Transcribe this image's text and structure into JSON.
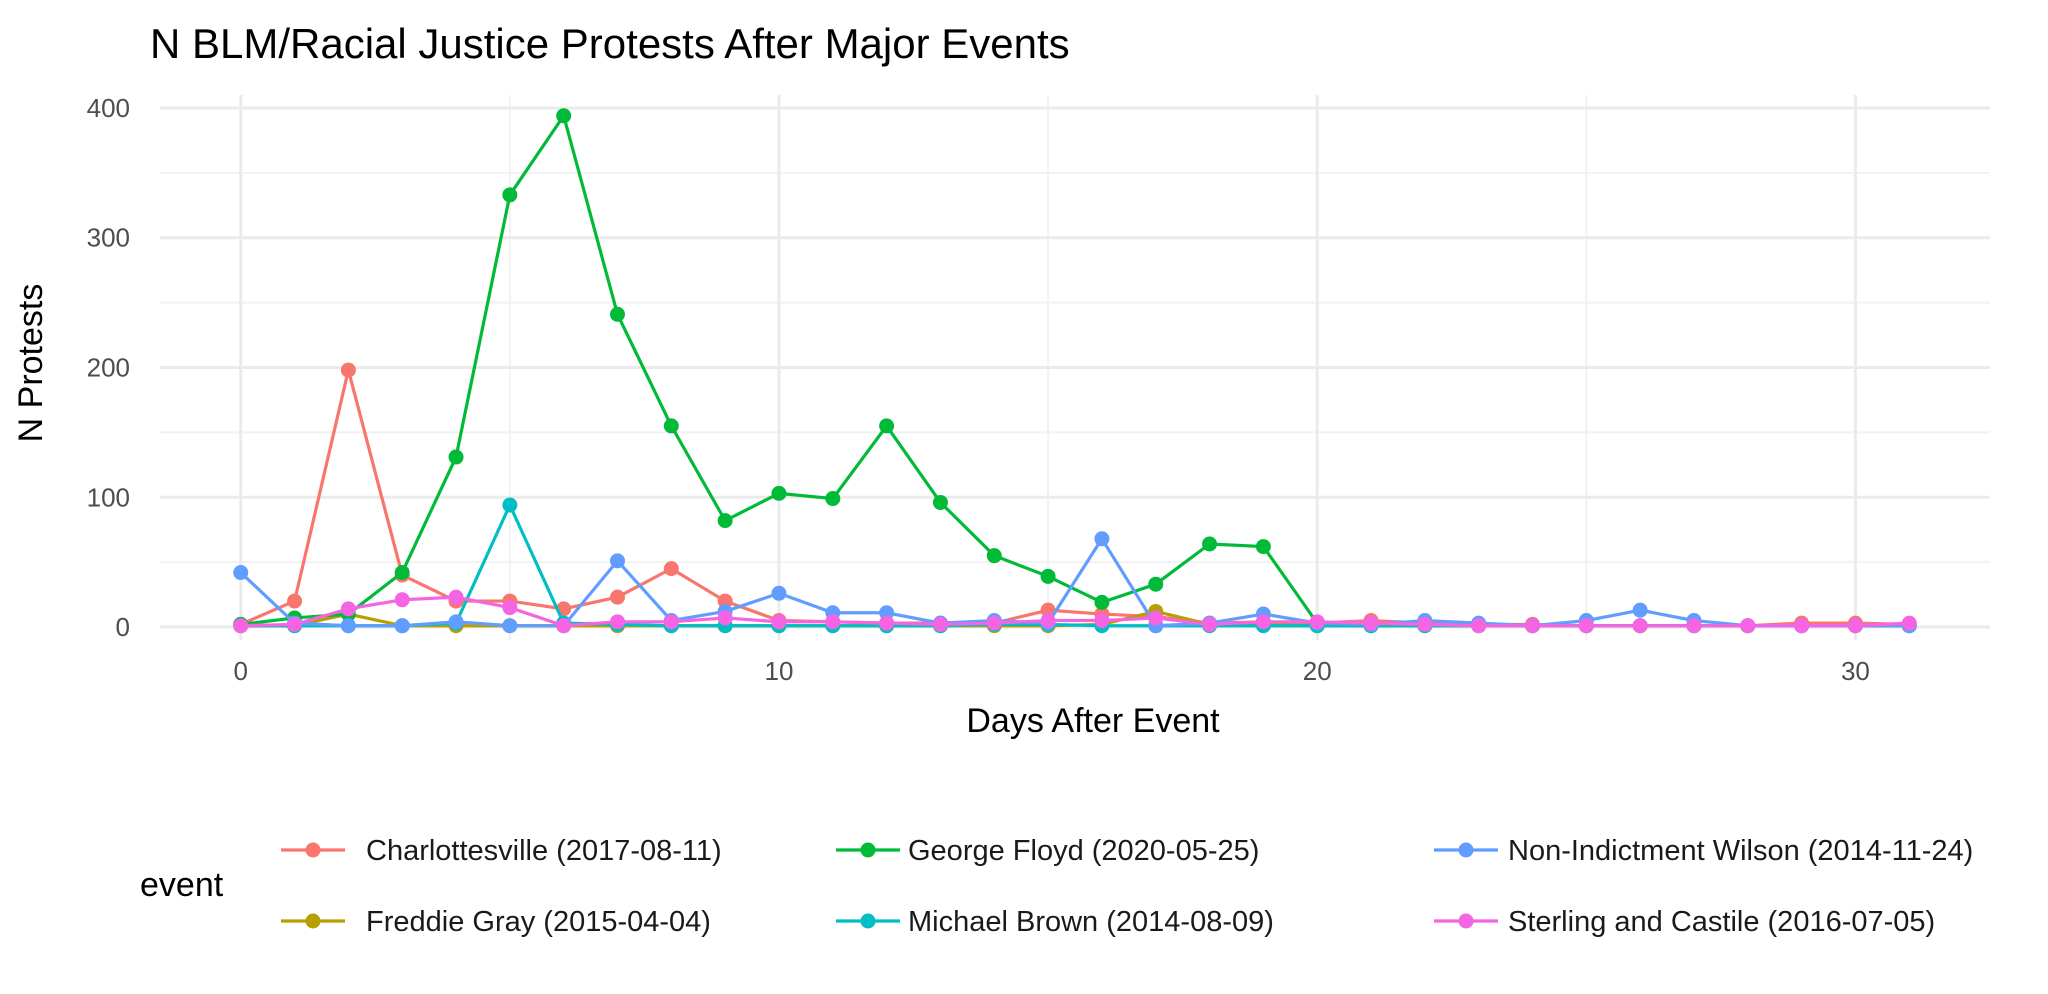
{
  "chart_data": {
    "type": "line",
    "title": "N BLM/Racial Justice Protests After Major Events",
    "xlabel": "Days After Event",
    "ylabel": "N Protests",
    "xlim": [
      -1.5,
      32.5
    ],
    "ylim": [
      -10,
      410
    ],
    "x_ticks": [
      "0",
      "10",
      "20",
      "30"
    ],
    "y_ticks": [
      "0",
      "100",
      "200",
      "300",
      "400"
    ],
    "grid": true,
    "legend_title": "event",
    "legend_position": "bottom",
    "series": [
      {
        "name": "Charlottesville (2017-08-11)",
        "color": "#F8766D",
        "x": [
          0,
          1,
          2,
          3,
          4,
          5,
          6,
          7,
          8,
          9,
          10,
          11,
          12,
          13,
          14,
          15,
          16,
          17,
          18,
          19,
          20,
          21,
          22,
          23,
          24,
          25,
          26,
          27,
          28,
          29,
          30,
          31
        ],
        "values": [
          2,
          20,
          198,
          40,
          20,
          20,
          14,
          23,
          45,
          20,
          5,
          4,
          3,
          3,
          3,
          13,
          10,
          8,
          3,
          4,
          3,
          5,
          3,
          2,
          2,
          1,
          1,
          1,
          1,
          3,
          3,
          2
        ]
      },
      {
        "name": "Freddie Gray (2015-04-04)",
        "color": "#B79F00",
        "x": [
          0,
          1,
          2,
          3,
          4,
          5,
          6,
          7,
          8,
          9,
          10,
          11,
          12,
          13,
          14,
          15,
          16,
          17,
          18,
          19,
          20,
          21,
          22,
          23,
          24,
          25,
          26,
          27,
          28,
          29,
          30,
          31
        ],
        "values": [
          1,
          1,
          10,
          1,
          1,
          1,
          1,
          1,
          1,
          1,
          1,
          1,
          1,
          1,
          1,
          1,
          2,
          12,
          2,
          2,
          1,
          1,
          1,
          1,
          1,
          1,
          1,
          1,
          1,
          1,
          1,
          1
        ]
      },
      {
        "name": "George Floyd (2020-05-25)",
        "color": "#00BA38",
        "x": [
          0,
          1,
          2,
          3,
          4,
          5,
          6,
          7,
          8,
          9,
          10,
          11,
          12,
          13,
          14,
          15,
          16,
          17,
          18,
          19,
          20
        ],
        "values": [
          2,
          7,
          10,
          42,
          131,
          333,
          394,
          241,
          155,
          82,
          103,
          99,
          155,
          96,
          55,
          39,
          19,
          33,
          64,
          62,
          3
        ]
      },
      {
        "name": "Michael Brown (2014-08-09)",
        "color": "#00BFC4",
        "x": [
          0,
          1,
          2,
          3,
          4,
          5,
          6,
          7,
          8,
          9,
          10,
          11,
          12,
          13,
          14,
          15,
          16,
          17,
          18,
          19,
          20,
          21,
          22,
          23,
          24,
          25,
          26,
          27,
          28,
          29,
          30,
          31
        ],
        "values": [
          1,
          1,
          1,
          1,
          3,
          94,
          3,
          2,
          1,
          1,
          1,
          1,
          1,
          1,
          2,
          2,
          1,
          1,
          1,
          1,
          1,
          1,
          1,
          1,
          1,
          1,
          1,
          1,
          1,
          1,
          1,
          1
        ]
      },
      {
        "name": "Non-Indictment Wilson (2014-11-24)",
        "color": "#619CFF",
        "x": [
          0,
          1,
          2,
          3,
          4,
          5,
          6,
          7,
          8,
          9,
          10,
          11,
          12,
          13,
          14,
          15,
          16,
          17,
          18,
          19,
          20,
          21,
          22,
          23,
          24,
          25,
          26,
          27,
          28,
          29,
          30,
          31
        ],
        "values": [
          42,
          3,
          1,
          1,
          4,
          1,
          1,
          51,
          5,
          12,
          26,
          11,
          11,
          3,
          5,
          3,
          68,
          1,
          3,
          10,
          3,
          2,
          5,
          3,
          1,
          5,
          13,
          5,
          1,
          1,
          1,
          1
        ]
      },
      {
        "name": "Sterling and Castile (2016-07-05)",
        "color": "#F564E3",
        "x": [
          0,
          1,
          2,
          3,
          4,
          5,
          6,
          7,
          8,
          9,
          10,
          11,
          12,
          13,
          14,
          15,
          16,
          17,
          18,
          19,
          20,
          21,
          22,
          23,
          24,
          25,
          26,
          27,
          28,
          29,
          30,
          31
        ],
        "values": [
          1,
          2,
          14,
          21,
          23,
          15,
          1,
          4,
          4,
          7,
          4,
          4,
          3,
          2,
          3,
          5,
          5,
          7,
          2,
          4,
          4,
          3,
          2,
          1,
          1,
          1,
          1,
          1,
          1,
          1,
          1,
          3
        ]
      }
    ]
  }
}
